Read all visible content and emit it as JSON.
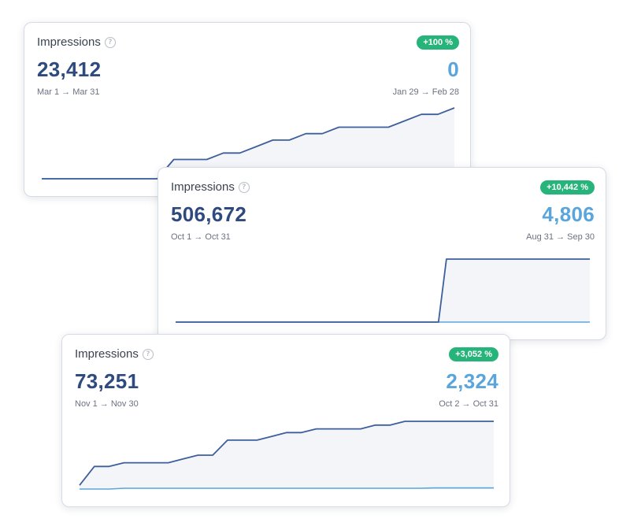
{
  "cards": [
    {
      "title": "Impressions",
      "help_icon": "question-circle-icon",
      "badge": "+100 %",
      "current_value": "23,412",
      "previous_value": "0",
      "current_range": "Mar 1 → Mar 31",
      "previous_range": "Jan 29 → Feb 28"
    },
    {
      "title": "Impressions",
      "help_icon": "question-circle-icon",
      "badge": "+10,442 %",
      "current_value": "506,672",
      "previous_value": "4,806",
      "current_range": "Oct 1 → Oct 31",
      "previous_range": "Aug 31 → Sep 30"
    },
    {
      "title": "Impressions",
      "help_icon": "question-circle-icon",
      "badge": "+3,052 %",
      "current_value": "73,251",
      "previous_value": "2,324",
      "current_range": "Nov 1 → Nov 30",
      "previous_range": "Oct 2 → Oct 31"
    }
  ],
  "colors": {
    "current_line": "#3d5f9c",
    "previous_line": "#5aa5dc",
    "area_fill": "#f3f5f9",
    "badge": "#27b47a"
  },
  "chart_data": [
    {
      "type": "area",
      "series": [
        {
          "values": [
            0,
            0,
            0,
            0,
            0,
            0,
            0,
            0,
            3,
            3,
            3,
            4,
            4,
            5,
            6,
            6,
            7,
            7,
            8,
            8,
            8,
            8,
            9,
            10,
            10,
            11
          ]
        },
        {
          "values": [
            0,
            0,
            0,
            0,
            0,
            0,
            0,
            0,
            0,
            0,
            0,
            0,
            0,
            0,
            0,
            0,
            0,
            0,
            0,
            0,
            0,
            0,
            0,
            0,
            0,
            0
          ]
        }
      ]
    },
    {
      "type": "area",
      "series": [
        {
          "values": [
            0,
            0,
            0,
            0,
            0,
            0,
            0,
            0,
            0,
            0,
            0,
            0,
            0,
            0,
            0,
            0,
            0,
            0,
            0,
            0,
            0,
            0,
            0,
            0,
            0,
            0,
            0,
            0,
            0,
            0,
            0,
            0,
            0,
            0,
            1000,
            1000,
            1000,
            1000,
            1000,
            1000,
            1000,
            1000,
            1000,
            1000,
            1000,
            1000,
            1000,
            1000,
            1000,
            1000,
            1000,
            1000,
            1000
          ]
        },
        {
          "values": [
            0,
            0,
            0,
            0,
            0,
            0,
            0,
            0,
            0,
            0,
            0,
            0,
            0,
            0,
            0,
            0,
            0,
            0,
            0,
            0,
            0,
            0,
            0,
            0,
            0,
            0,
            0,
            0,
            0,
            0,
            0,
            0,
            0,
            0,
            0,
            0,
            0,
            0,
            0,
            0,
            0,
            0,
            0,
            0,
            0,
            0,
            0,
            0,
            0,
            0,
            0,
            0,
            0
          ]
        }
      ]
    },
    {
      "type": "area",
      "series": [
        {
          "values": [
            1,
            6,
            6,
            7,
            7,
            7,
            7,
            8,
            9,
            9,
            13,
            13,
            13,
            14,
            15,
            15,
            16,
            16,
            16,
            16,
            17,
            17,
            18,
            18,
            18,
            18,
            18,
            18,
            18
          ]
        },
        {
          "values": [
            0,
            0,
            0,
            0.2,
            0.2,
            0.2,
            0.2,
            0.2,
            0.2,
            0.2,
            0.2,
            0.2,
            0.2,
            0.2,
            0.2,
            0.2,
            0.2,
            0.2,
            0.2,
            0.2,
            0.2,
            0.2,
            0.2,
            0.2,
            0.3,
            0.3,
            0.3,
            0.3,
            0.3
          ]
        }
      ]
    }
  ]
}
